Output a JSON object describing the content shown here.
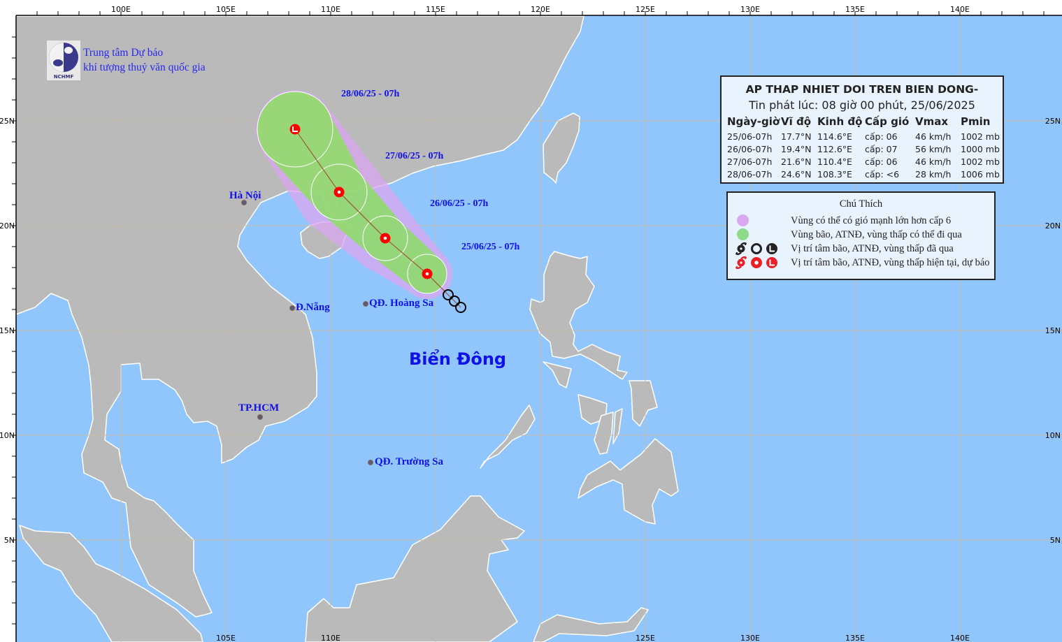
{
  "organization": {
    "logo_text": "NCHMF",
    "line1": "Trung tâm Dự báo",
    "line2": "khí tượng thuỷ văn quốc gia"
  },
  "map": {
    "projection": "equirectangular",
    "lon_range": [
      95,
      145
    ],
    "lat_range": [
      0,
      30
    ],
    "grid_step_deg": 5,
    "top_lon_labels": [
      "100E",
      "105E",
      "110E",
      "115E",
      "120E",
      "125E",
      "130E",
      "135E",
      "140E"
    ],
    "bottom_lon_labels": [
      "105E",
      "110E",
      "125E",
      "130E",
      "135E",
      "140E"
    ],
    "lat_labels": [
      "25N",
      "20N",
      "15N",
      "10N",
      "5N"
    ],
    "colors": {
      "sea": "#90c6fc",
      "land": "#bababa",
      "coast": "#ffffff",
      "grid": "#c8bea8"
    },
    "sea_label": "Biển Đông",
    "places": [
      {
        "name": "Hà Nội"
      },
      {
        "name": "Đ.Nẵng"
      },
      {
        "name": "QĐ. Hoàng Sa"
      },
      {
        "name": "TP.HCM"
      },
      {
        "name": "QĐ. Trường Sa"
      }
    ]
  },
  "storm": {
    "colors": {
      "cone_strong_wind": "#dca6f2",
      "cone_track": "#8ede66",
      "marker": "#ff0000",
      "past_marker": "#000000",
      "track_line": "#a0402a"
    },
    "date_labels": [
      "25/06/25 - 07h",
      "26/06/25 - 07h",
      "27/06/25 - 07h",
      "28/06/25 - 07h"
    ],
    "track": [
      {
        "lat": 17.7,
        "lon": 114.6,
        "symbol": "circle"
      },
      {
        "lat": 19.4,
        "lon": 112.6,
        "symbol": "circle"
      },
      {
        "lat": 21.6,
        "lon": 110.4,
        "symbol": "circle"
      },
      {
        "lat": 24.6,
        "lon": 108.3,
        "symbol": "L"
      }
    ],
    "past_positions": [
      {
        "lat": 16.7,
        "lon": 115.6
      },
      {
        "lat": 16.4,
        "lon": 115.9
      },
      {
        "lat": 16.1,
        "lon": 116.2
      }
    ]
  },
  "bulletin": {
    "title": "AP THAP NHIET DOI TREN BIEN DONG-",
    "issued": "Tin phát lúc: 08 giờ 00 phút, 25/06/2025",
    "columns": [
      "Ngày-giờ",
      "Vĩ độ",
      "Kinh độ",
      "Cấp gió",
      "Vmax",
      "Pmin"
    ],
    "rows": [
      [
        "25/06-07h",
        "17.7°N",
        "114.6°E",
        "cấp: 06",
        "46 km/h",
        "1002 mb"
      ],
      [
        "26/06-07h",
        "19.4°N",
        "112.6°E",
        "cấp: 07",
        "56 km/h",
        "1000 mb"
      ],
      [
        "27/06-07h",
        "21.6°N",
        "110.4°E",
        "cấp: 06",
        "46 km/h",
        "1002 mb"
      ],
      [
        "28/06-07h",
        "24.6°N",
        "108.3°E",
        "cấp: <6",
        "28 km/h",
        "1006 mb"
      ]
    ]
  },
  "legend": {
    "title": "Chú Thích",
    "items": [
      {
        "label": "Vùng có thể có gió mạnh lớn hơn cấp 6",
        "color": "#d9a8ef"
      },
      {
        "label": "Vùng bão, ATNĐ, vùng thấp có thể đi qua",
        "color": "#8cdc8c"
      },
      {
        "label": "Vị trí tâm bão, ATNĐ, vùng thấp đã qua",
        "color": "#222222"
      },
      {
        "label": "Vị trí tâm bão, ATNĐ, vùng thấp hiện tại, dự báo",
        "color": "#e8202a"
      }
    ]
  }
}
